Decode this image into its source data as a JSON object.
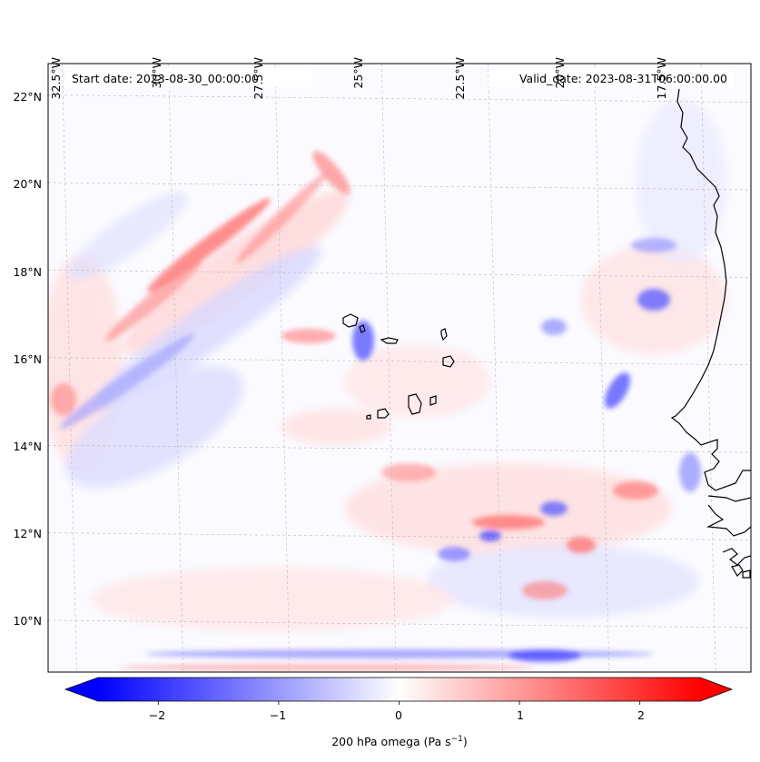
{
  "map": {
    "lon_labels": [
      "32.5°W",
      "30°W",
      "27.5°W",
      "25°W",
      "22.5°W",
      "20°W",
      "17.5°W"
    ],
    "lon_values": [
      -32.5,
      -30,
      -27.5,
      -25,
      -22.5,
      -20,
      -17.5
    ],
    "lat_labels": [
      "22°N",
      "20°N",
      "18°N",
      "16°N",
      "14°N",
      "12°N",
      "10°N"
    ],
    "lat_values": [
      22,
      20,
      18,
      16,
      14,
      12,
      10
    ],
    "lon_range": [
      -33.0,
      -16.5
    ],
    "lat_range": [
      8.9,
      22.8
    ],
    "start_date_text": "Start date: 2023-08-30_00:00:00",
    "valid_date_text": "Valid_date: 2023-08-31T06:00:00.00",
    "field": "200 hPa omega",
    "colormap": "bwr",
    "negative_color": "#0000ff",
    "zero_color": "#ffffff",
    "positive_color": "#ff0000",
    "coastline_color": "#000000",
    "gridline_style": "dashed light grey"
  },
  "colorbar": {
    "ticks": [
      "−2",
      "−1",
      "0",
      "1",
      "2"
    ],
    "tick_values": [
      -2,
      -1,
      0,
      1,
      2
    ],
    "range": [
      -2.5,
      2.5
    ],
    "extend": "both",
    "label_main": "200 hPa omega (Pa s",
    "label_sup": "−1",
    "label_end": ")"
  }
}
